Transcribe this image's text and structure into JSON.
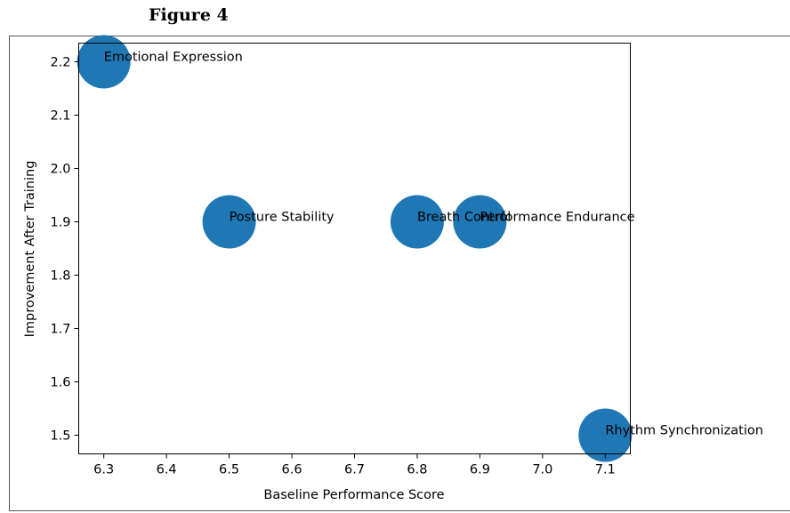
{
  "figure_heading": "Figure 4",
  "chart_data": {
    "type": "scatter",
    "title": "",
    "xlabel": "Baseline Performance Score",
    "ylabel": "Improvement After Training",
    "xlim": [
      6.26,
      7.14
    ],
    "ylim": [
      1.465,
      2.235
    ],
    "xticks": [
      6.3,
      6.4,
      6.5,
      6.6,
      6.7,
      6.8,
      6.9,
      7.0,
      7.1
    ],
    "xtick_labels": [
      "6.3",
      "6.4",
      "6.5",
      "6.6",
      "6.7",
      "6.8",
      "6.9",
      "7.0",
      "7.1"
    ],
    "yticks": [
      1.5,
      1.6,
      1.7,
      1.8,
      1.9,
      2.0,
      2.1,
      2.2
    ],
    "ytick_labels": [
      "1.5",
      "1.6",
      "1.7",
      "1.8",
      "1.9",
      "2.0",
      "2.1",
      "2.2"
    ],
    "grid": false,
    "marker_color": "#1f77b4",
    "points": [
      {
        "x": 6.3,
        "y": 2.2,
        "label": "Emotional Expression"
      },
      {
        "x": 6.5,
        "y": 1.9,
        "label": "Posture Stability"
      },
      {
        "x": 6.8,
        "y": 1.9,
        "label": "Breath Control"
      },
      {
        "x": 6.9,
        "y": 1.9,
        "label": "Performance Endurance"
      },
      {
        "x": 7.1,
        "y": 1.5,
        "label": "Rhythm Synchronization"
      }
    ]
  }
}
